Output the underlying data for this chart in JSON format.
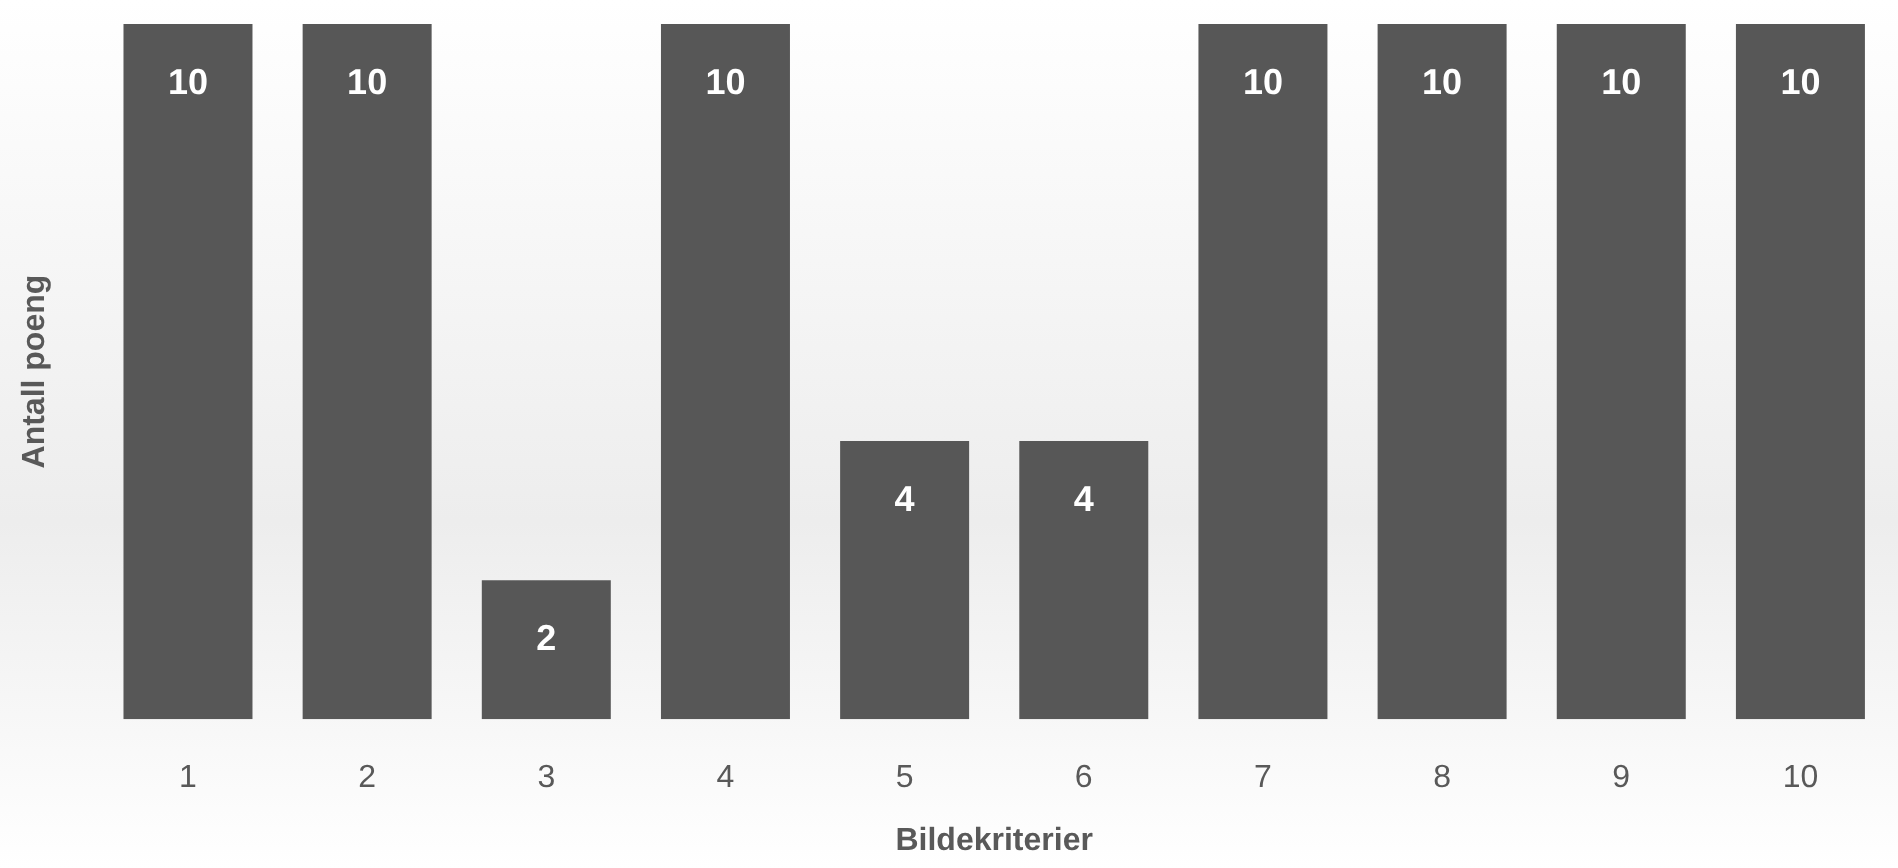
{
  "chart_data": {
    "type": "bar",
    "xlabel": "Bildekriterier",
    "ylabel": "Antall poeng",
    "categories": [
      "1",
      "2",
      "3",
      "4",
      "5",
      "6",
      "7",
      "8",
      "9",
      "10"
    ],
    "values": [
      10,
      10,
      2,
      10,
      4,
      4,
      10,
      10,
      10,
      10
    ],
    "color": "#575757",
    "data_labels": true,
    "grid": false,
    "legend": false
  }
}
